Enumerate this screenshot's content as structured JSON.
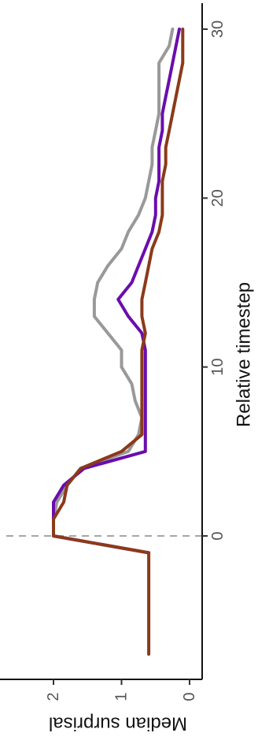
{
  "chart_data": {
    "type": "line",
    "orientation": "rotated-90-clockwise",
    "xlabel": "Relative timestep",
    "ylabel": "Median surprisal",
    "x_ticks": [
      0,
      10,
      20,
      30
    ],
    "y_ticks": [
      0,
      1,
      2
    ],
    "xlim": [
      -9,
      30.5
    ],
    "ylim": [
      -0.05,
      2.75
    ],
    "reference_line": {
      "x": 0,
      "style": "dashed",
      "color": "#a6a6a6"
    },
    "legend": "none",
    "series": [
      {
        "color": "#999999",
        "x": [
          -1,
          0,
          1,
          2,
          3,
          4,
          5,
          6,
          7,
          8,
          9,
          10,
          11,
          12,
          13,
          14,
          15,
          16,
          17,
          18,
          19,
          20,
          21,
          22,
          23,
          24,
          25,
          26,
          27,
          28,
          29,
          30
        ],
        "y": [
          0.6,
          2.0,
          2.0,
          1.95,
          1.8,
          1.6,
          0.9,
          0.75,
          0.7,
          0.8,
          0.85,
          1.0,
          1.0,
          1.2,
          1.4,
          1.4,
          1.35,
          1.2,
          1.0,
          0.9,
          0.75,
          0.65,
          0.6,
          0.55,
          0.55,
          0.5,
          0.45,
          0.45,
          0.45,
          0.45,
          0.3,
          0.25
        ]
      },
      {
        "color": "#6a0dad",
        "x": [
          -1,
          0,
          1,
          2,
          3,
          4,
          5,
          6,
          7,
          8,
          9,
          10,
          11,
          12,
          13,
          14,
          15,
          16,
          17,
          18,
          19,
          20,
          21,
          22,
          23,
          24,
          25,
          26,
          27,
          28,
          29,
          30
        ],
        "y": [
          0.6,
          2.0,
          2.0,
          2.0,
          1.85,
          1.55,
          0.65,
          0.65,
          0.65,
          0.65,
          0.65,
          0.65,
          0.65,
          0.7,
          0.9,
          1.05,
          0.85,
          0.75,
          0.65,
          0.55,
          0.5,
          0.5,
          0.45,
          0.45,
          0.45,
          0.4,
          0.4,
          0.35,
          0.3,
          0.25,
          0.2,
          0.15
        ]
      },
      {
        "color": "#8b3a1a",
        "x": [
          -7,
          -1,
          0,
          1,
          2,
          3,
          4,
          5,
          6,
          7,
          8,
          9,
          10,
          11,
          12,
          13,
          14,
          15,
          16,
          17,
          18,
          19,
          20,
          21,
          22,
          23,
          24,
          25,
          26,
          27,
          28,
          29,
          30
        ],
        "y": [
          0.6,
          0.6,
          2.0,
          2.0,
          1.85,
          1.8,
          1.6,
          1.0,
          0.7,
          0.7,
          0.7,
          0.7,
          0.7,
          0.7,
          0.65,
          0.7,
          0.7,
          0.65,
          0.6,
          0.55,
          0.45,
          0.4,
          0.4,
          0.4,
          0.35,
          0.35,
          0.3,
          0.25,
          0.2,
          0.15,
          0.1,
          0.1,
          0.1
        ]
      }
    ]
  }
}
